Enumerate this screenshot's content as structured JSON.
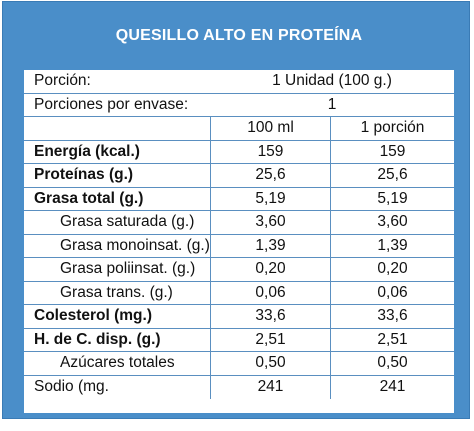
{
  "title": "QUESILLO ALTO EN PROTEÍNA",
  "portion": {
    "label": "Porción:",
    "value": "1 Unidad (100 g.)"
  },
  "servings": {
    "label": "Porciones por envase:",
    "value": "1"
  },
  "headers": {
    "col1": "100 ml",
    "col2": "1 porción"
  },
  "rows": [
    {
      "label": "Energía (kcal.)",
      "bold": true,
      "indent": false,
      "v1": "159",
      "v2": "159"
    },
    {
      "label": "Proteínas (g.)",
      "bold": true,
      "indent": false,
      "v1": "25,6",
      "v2": "25,6"
    },
    {
      "label": "Grasa total (g.)",
      "bold": true,
      "indent": false,
      "v1": "5,19",
      "v2": "5,19"
    },
    {
      "label": "Grasa saturada (g.)",
      "bold": false,
      "indent": true,
      "v1": "3,60",
      "v2": "3,60"
    },
    {
      "label": "Grasa monoinsat. (g.)",
      "bold": false,
      "indent": true,
      "v1": "1,39",
      "v2": "1,39"
    },
    {
      "label": "Grasa poliinsat. (g.)",
      "bold": false,
      "indent": true,
      "v1": "0,20",
      "v2": "0,20"
    },
    {
      "label": "Grasa trans. (g.)",
      "bold": false,
      "indent": true,
      "v1": "0,06",
      "v2": "0,06"
    },
    {
      "label": "Colesterol (mg.)",
      "bold": true,
      "indent": false,
      "v1": "33,6",
      "v2": "33,6"
    },
    {
      "label": "H. de C. disp. (g.)",
      "bold": true,
      "indent": false,
      "v1": "2,51",
      "v2": "2,51"
    },
    {
      "label": "Azúcares totales",
      "bold": false,
      "indent": true,
      "v1": "0,50",
      "v2": "0,50"
    },
    {
      "label": "Sodio (mg.",
      "bold": false,
      "indent": false,
      "v1": "241",
      "v2": "241"
    }
  ],
  "colors": {
    "header_blue": "#4a8ec9",
    "border_blue": "#5a8fc0"
  }
}
